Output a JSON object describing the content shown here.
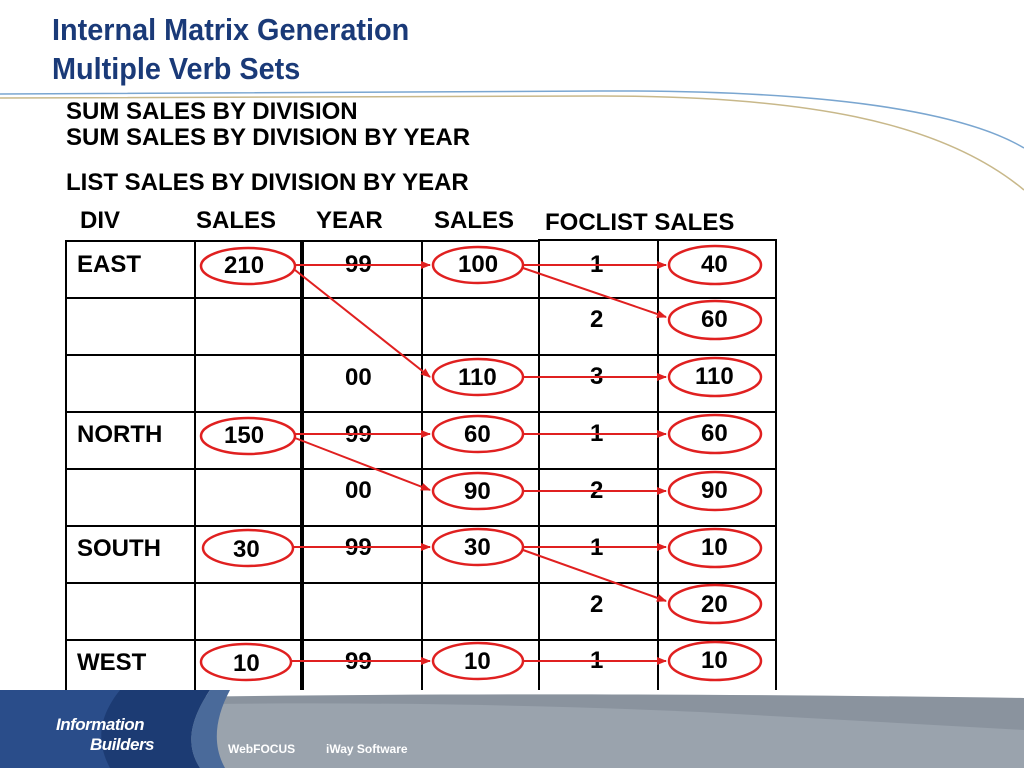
{
  "slide": {
    "title_line1": "Internal Matrix Generation",
    "title_line2": "Multiple Verb Sets"
  },
  "verbs": {
    "line1": "SUM SALES BY DIVISION",
    "line2": "SUM SALES BY DIVISION BY YEAR",
    "line3": "LIST SALES BY DIVISION BY YEAR"
  },
  "headers": {
    "div": "DIV",
    "sales1": "SALES",
    "year": "YEAR",
    "sales2": "SALES",
    "foclist": "FOCLIST SALES"
  },
  "table1": {
    "rows": [
      {
        "div": "EAST",
        "sales": "210"
      },
      {
        "div": "",
        "sales": ""
      },
      {
        "div": "",
        "sales": ""
      },
      {
        "div": "NORTH",
        "sales": "150"
      },
      {
        "div": "",
        "sales": ""
      },
      {
        "div": "SOUTH",
        "sales": "30"
      },
      {
        "div": "",
        "sales": ""
      },
      {
        "div": "WEST",
        "sales": "10"
      }
    ]
  },
  "table2": {
    "rows": [
      {
        "year": "99",
        "sales": "100"
      },
      {
        "year": "",
        "sales": ""
      },
      {
        "year": "00",
        "sales": "110"
      },
      {
        "year": "99",
        "sales": "60"
      },
      {
        "year": "00",
        "sales": "90"
      },
      {
        "year": "99",
        "sales": "30"
      },
      {
        "year": "",
        "sales": ""
      },
      {
        "year": "99",
        "sales": "10"
      }
    ]
  },
  "table3": {
    "rows": [
      {
        "foclist": "1",
        "sales": "40"
      },
      {
        "foclist": "2",
        "sales": "60"
      },
      {
        "foclist": "3",
        "sales": "110"
      },
      {
        "foclist": "1",
        "sales": "60"
      },
      {
        "foclist": "2",
        "sales": "90"
      },
      {
        "foclist": "1",
        "sales": "10"
      },
      {
        "foclist": "2",
        "sales": "20"
      },
      {
        "foclist": "1",
        "sales": "10"
      }
    ]
  },
  "footer": {
    "brand_line1": "Information",
    "brand_line2": "Builders",
    "product1": "WebFOCUS",
    "product2": "iWay Software"
  },
  "colors": {
    "title": "#1a3a78",
    "highlight": "#e02020",
    "footer_dark": "#1c3b73",
    "footer_mid": "#4a6a9a",
    "footer_gray": "#8a939e",
    "swoosh": "#6a9ac8"
  }
}
